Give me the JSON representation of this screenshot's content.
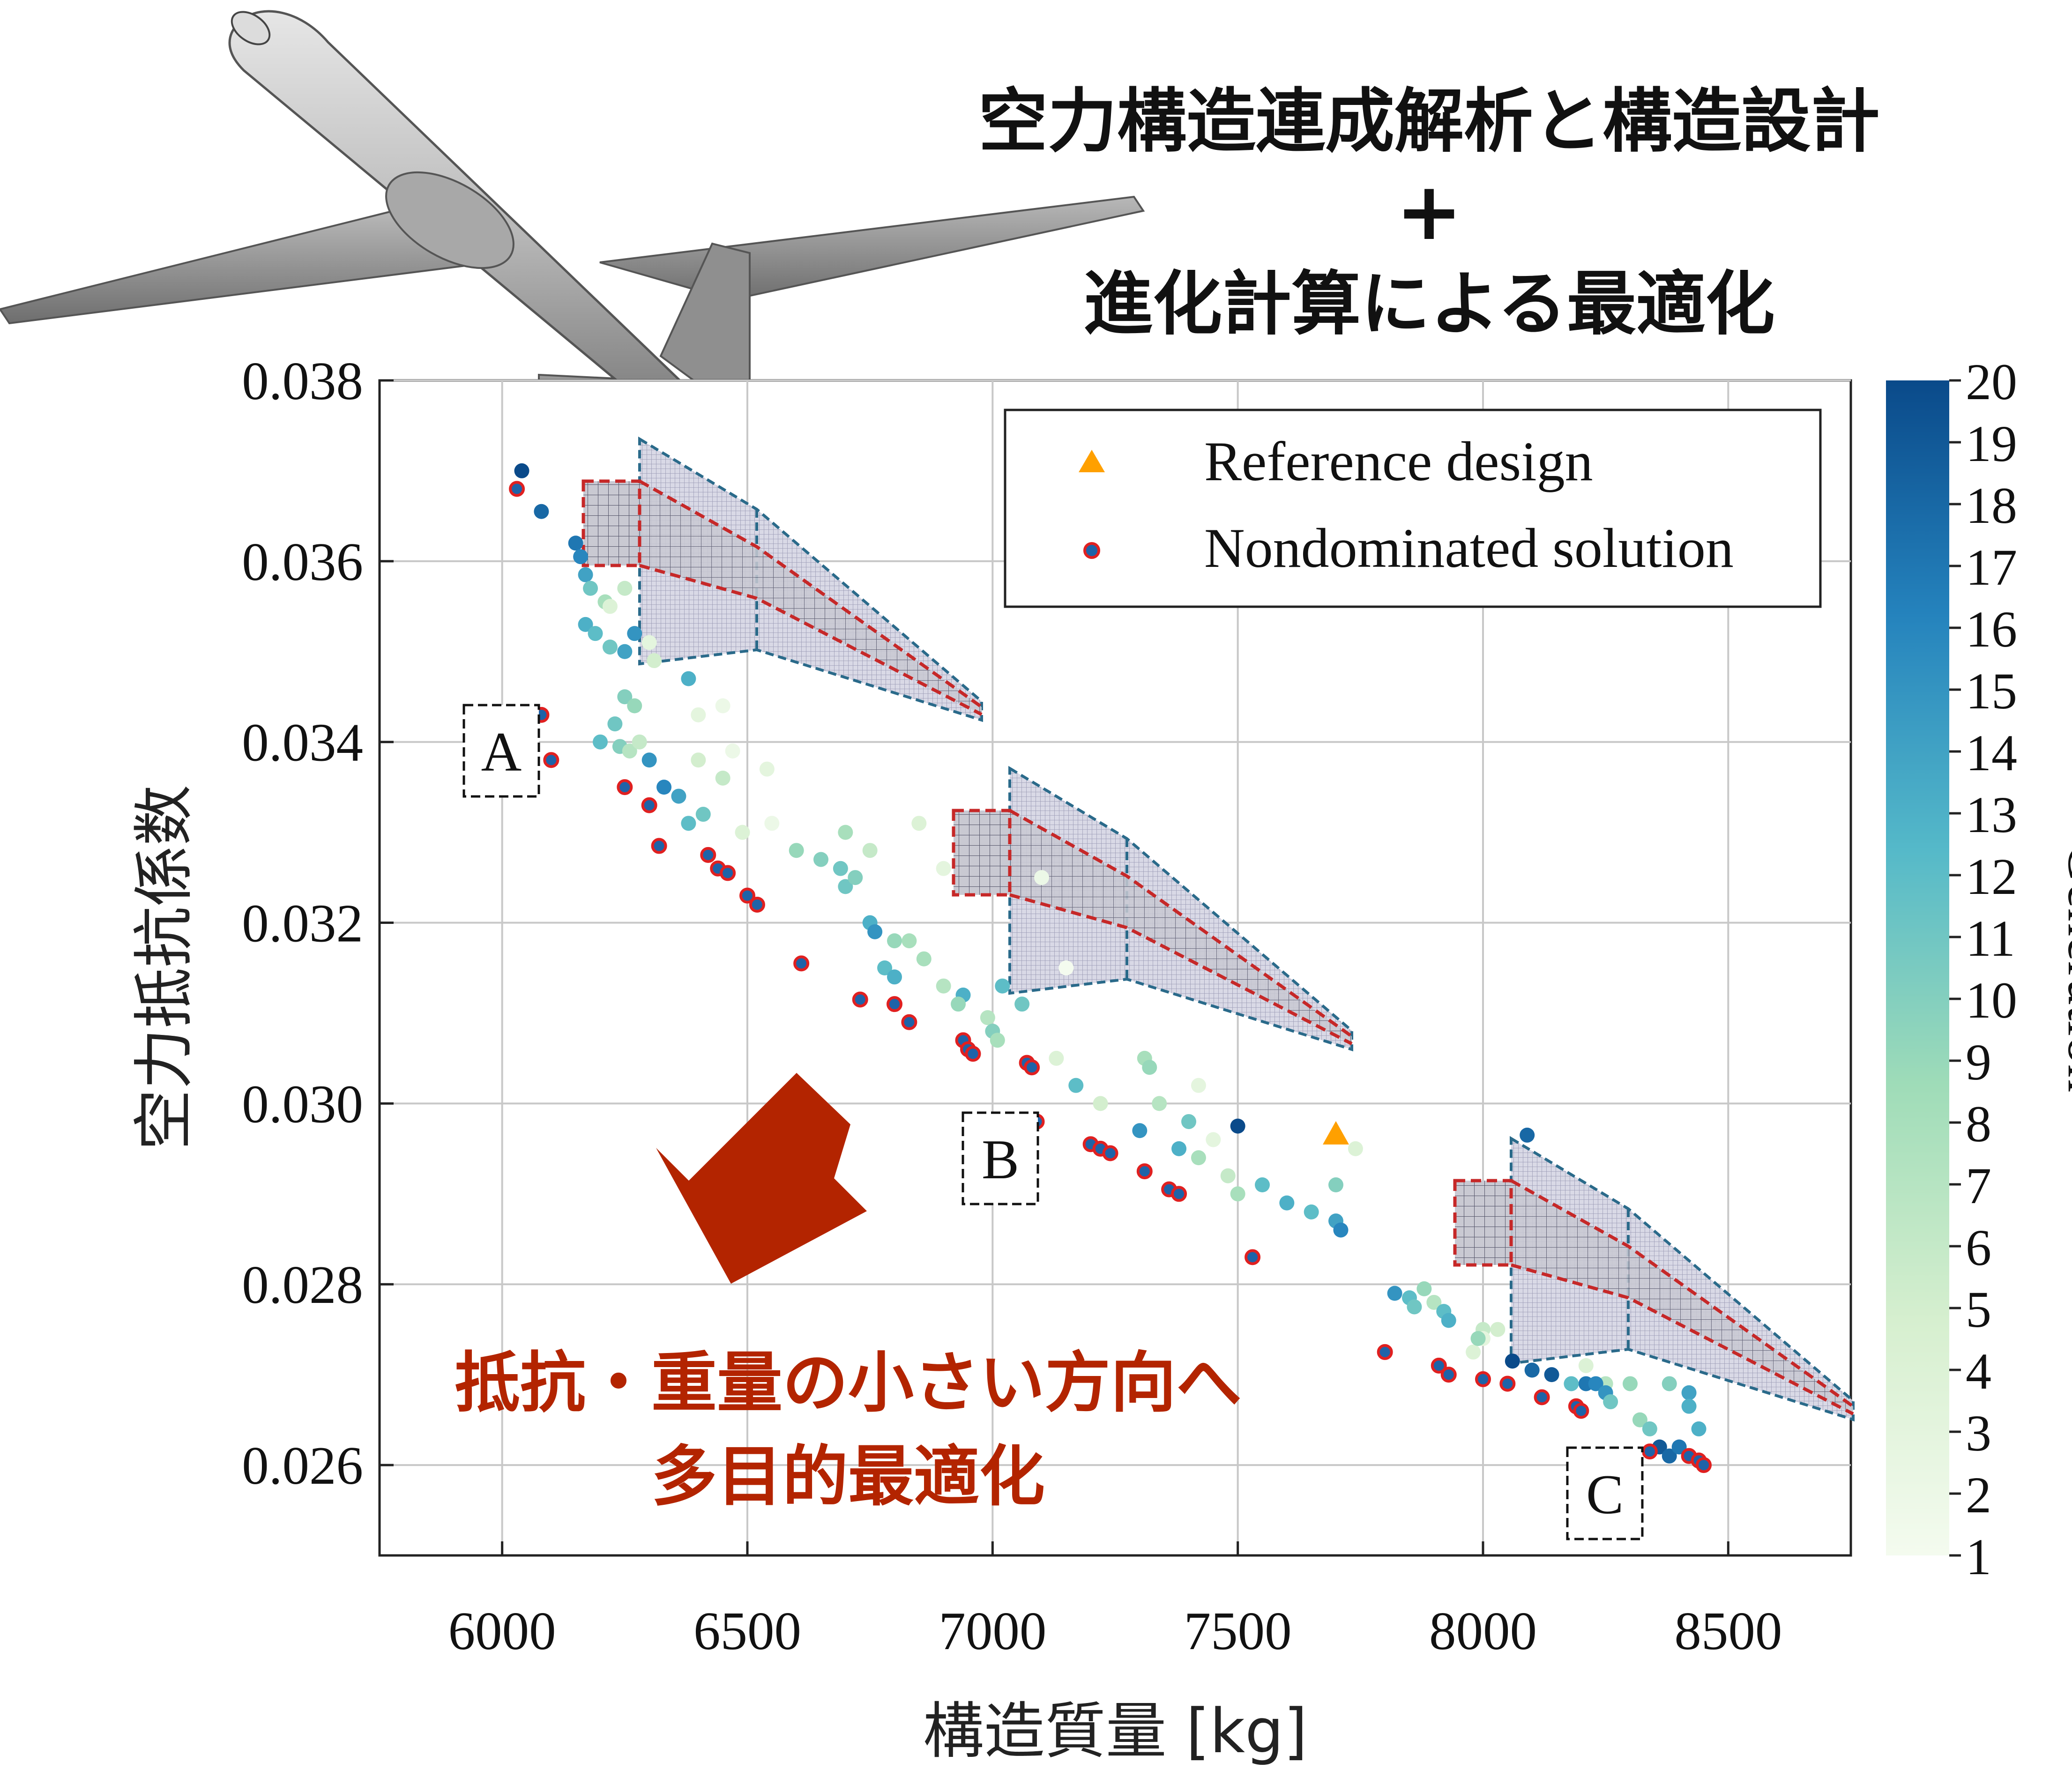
{
  "title": {
    "line1": "空力構造連成解析と構造設計",
    "line2": "+",
    "line3": "進化計算による最適化"
  },
  "annotation": {
    "line1": "抵抗・重量の小さい方向へ",
    "line2": "多目的最適化",
    "color": "#b32400"
  },
  "colors": {
    "reference": "#ffa000",
    "nondominated_fill": "#1e63a8",
    "nondominated_edge": "#e02020",
    "cmap_low": "#f4fbef",
    "cmap_mid": "#7fcfb6",
    "cmap_high": "#0a4a8a",
    "wing_outline": "#2a6a8a",
    "spar": "#c62828",
    "arrow": "#b32400"
  },
  "labels": {
    "a": "A",
    "b": "B",
    "c": "C"
  },
  "chart_data": {
    "type": "scatter",
    "xlabel": "構造質量 [kg]",
    "ylabel": "空力抵抗係数",
    "xlim": [
      5750,
      8750
    ],
    "ylim": [
      0.025,
      0.038
    ],
    "xticks": [
      "6000",
      "6500",
      "7000",
      "7500",
      "8000",
      "8500"
    ],
    "yticks": [
      "0.026",
      "0.028",
      "0.030",
      "0.032",
      "0.034",
      "0.036",
      "0.038"
    ],
    "grid": true,
    "legend": {
      "placement": "top-right",
      "entries": [
        "Reference design",
        "Nondominated solution"
      ]
    },
    "colorbar": {
      "label": "Generation",
      "min": 1,
      "max": 20,
      "ticks": [
        "1",
        "2",
        "3",
        "4",
        "5",
        "6",
        "7",
        "8",
        "9",
        "10",
        "11",
        "12",
        "13",
        "14",
        "15",
        "16",
        "17",
        "18",
        "19",
        "20"
      ]
    },
    "reference": {
      "x": 7700,
      "y": 0.02965
    },
    "nondominated": [
      [
        6030,
        0.0368
      ],
      [
        6080,
        0.0343
      ],
      [
        6100,
        0.0338
      ],
      [
        6250,
        0.0335
      ],
      [
        6300,
        0.0333
      ],
      [
        6320,
        0.03285
      ],
      [
        6420,
        0.03275
      ],
      [
        6440,
        0.0326
      ],
      [
        6460,
        0.03255
      ],
      [
        6500,
        0.0323
      ],
      [
        6520,
        0.0322
      ],
      [
        6610,
        0.03155
      ],
      [
        6730,
        0.03115
      ],
      [
        6800,
        0.0311
      ],
      [
        6830,
        0.0309
      ],
      [
        6940,
        0.0307
      ],
      [
        6950,
        0.0306
      ],
      [
        6960,
        0.03055
      ],
      [
        7070,
        0.03045
      ],
      [
        7080,
        0.0304
      ],
      [
        7090,
        0.0298
      ],
      [
        7200,
        0.02955
      ],
      [
        7220,
        0.0295
      ],
      [
        7240,
        0.02945
      ],
      [
        7310,
        0.02925
      ],
      [
        7360,
        0.02905
      ],
      [
        7380,
        0.029
      ],
      [
        7530,
        0.0283
      ],
      [
        7800,
        0.02725
      ],
      [
        7910,
        0.0271
      ],
      [
        7930,
        0.027
      ],
      [
        8000,
        0.02695
      ],
      [
        8050,
        0.0269
      ],
      [
        8120,
        0.02675
      ],
      [
        8190,
        0.02665
      ],
      [
        8200,
        0.0266
      ],
      [
        8340,
        0.02615
      ],
      [
        8420,
        0.0261
      ],
      [
        8440,
        0.02605
      ],
      [
        8450,
        0.026
      ]
    ],
    "population": [
      [
        6040,
        0.037,
        20
      ],
      [
        6080,
        0.03655,
        18
      ],
      [
        6150,
        0.0362,
        17
      ],
      [
        6160,
        0.03605,
        16
      ],
      [
        6170,
        0.03585,
        14
      ],
      [
        6180,
        0.0357,
        11
      ],
      [
        6210,
        0.03555,
        8
      ],
      [
        6220,
        0.0355,
        4
      ],
      [
        6250,
        0.0357,
        6
      ],
      [
        6170,
        0.0353,
        13
      ],
      [
        6190,
        0.0352,
        12
      ],
      [
        6220,
        0.03505,
        11
      ],
      [
        6250,
        0.035,
        14
      ],
      [
        6270,
        0.0352,
        15
      ],
      [
        6300,
        0.0351,
        3
      ],
      [
        6310,
        0.0349,
        5
      ],
      [
        6380,
        0.0347,
        13
      ],
      [
        6400,
        0.0343,
        3
      ],
      [
        6450,
        0.0344,
        2
      ],
      [
        6250,
        0.0345,
        10
      ],
      [
        6270,
        0.0344,
        9
      ],
      [
        6230,
        0.0342,
        11
      ],
      [
        6200,
        0.034,
        12
      ],
      [
        6240,
        0.03395,
        10
      ],
      [
        6260,
        0.0339,
        7
      ],
      [
        6300,
        0.0338,
        15
      ],
      [
        6280,
        0.034,
        6
      ],
      [
        6400,
        0.0338,
        5
      ],
      [
        6470,
        0.0339,
        2
      ],
      [
        6330,
        0.0335,
        16
      ],
      [
        6360,
        0.0334,
        14
      ],
      [
        6380,
        0.0331,
        12
      ],
      [
        6410,
        0.0332,
        11
      ],
      [
        6450,
        0.0336,
        6
      ],
      [
        6490,
        0.033,
        4
      ],
      [
        6540,
        0.0337,
        3
      ],
      [
        6550,
        0.0331,
        2
      ],
      [
        6600,
        0.0328,
        9
      ],
      [
        6650,
        0.0327,
        10
      ],
      [
        6700,
        0.0324,
        11
      ],
      [
        6750,
        0.032,
        13
      ],
      [
        6760,
        0.0319,
        15
      ],
      [
        6780,
        0.0315,
        12
      ],
      [
        6800,
        0.0314,
        13
      ],
      [
        6690,
        0.0326,
        11
      ],
      [
        6720,
        0.0325,
        10
      ],
      [
        6800,
        0.0318,
        9
      ],
      [
        6830,
        0.0318,
        8
      ],
      [
        6860,
        0.0316,
        8
      ],
      [
        6900,
        0.0313,
        7
      ],
      [
        6940,
        0.0312,
        13
      ],
      [
        6930,
        0.0311,
        9
      ],
      [
        6990,
        0.03095,
        7
      ],
      [
        7000,
        0.0308,
        10
      ],
      [
        7010,
        0.0307,
        8
      ],
      [
        7020,
        0.0313,
        12
      ],
      [
        7060,
        0.0311,
        11
      ],
      [
        6700,
        0.033,
        8
      ],
      [
        6750,
        0.0328,
        6
      ],
      [
        6850,
        0.0331,
        4
      ],
      [
        6900,
        0.0326,
        3
      ],
      [
        7100,
        0.0325,
        2
      ],
      [
        7150,
        0.0315,
        1
      ],
      [
        7130,
        0.0305,
        4
      ],
      [
        7170,
        0.0302,
        12
      ],
      [
        7220,
        0.03,
        5
      ],
      [
        7310,
        0.0305,
        8
      ],
      [
        7320,
        0.0304,
        9
      ],
      [
        7340,
        0.03,
        7
      ],
      [
        7420,
        0.0302,
        3
      ],
      [
        7400,
        0.0298,
        11
      ],
      [
        7300,
        0.0297,
        15
      ],
      [
        7380,
        0.0295,
        13
      ],
      [
        7420,
        0.0294,
        8
      ],
      [
        7450,
        0.0296,
        3
      ],
      [
        7480,
        0.0292,
        6
      ],
      [
        7500,
        0.029,
        8
      ],
      [
        7550,
        0.0291,
        12
      ],
      [
        7600,
        0.0289,
        13
      ],
      [
        7650,
        0.0288,
        12
      ],
      [
        7700,
        0.0287,
        14
      ],
      [
        7710,
        0.0286,
        16
      ],
      [
        7700,
        0.0291,
        10
      ],
      [
        7740,
        0.0295,
        4
      ],
      [
        7500,
        0.02975,
        20
      ],
      [
        7820,
        0.0279,
        15
      ],
      [
        7850,
        0.02785,
        12
      ],
      [
        7860,
        0.02775,
        11
      ],
      [
        7880,
        0.02795,
        9
      ],
      [
        7900,
        0.0278,
        7
      ],
      [
        7920,
        0.0277,
        12
      ],
      [
        7930,
        0.0276,
        13
      ],
      [
        8000,
        0.0275,
        6
      ],
      [
        8030,
        0.0275,
        5
      ],
      [
        8000,
        0.0274,
        3
      ],
      [
        7980,
        0.02725,
        4
      ],
      [
        8060,
        0.02715,
        20
      ],
      [
        8100,
        0.02705,
        18
      ],
      [
        8210,
        0.0271,
        4
      ],
      [
        8250,
        0.0269,
        7
      ],
      [
        8300,
        0.0269,
        9
      ],
      [
        8380,
        0.0269,
        10
      ],
      [
        8420,
        0.0268,
        14
      ],
      [
        8420,
        0.02665,
        13
      ],
      [
        8210,
        0.0269,
        17
      ],
      [
        8230,
        0.0269,
        16
      ],
      [
        8250,
        0.0268,
        15
      ],
      [
        8140,
        0.027,
        19
      ],
      [
        8180,
        0.0269,
        12
      ],
      [
        8260,
        0.0267,
        11
      ],
      [
        8320,
        0.0265,
        9
      ],
      [
        8340,
        0.0264,
        11
      ],
      [
        8360,
        0.0262,
        19
      ],
      [
        8380,
        0.0261,
        18
      ],
      [
        8400,
        0.0262,
        17
      ],
      [
        8440,
        0.0264,
        13
      ],
      [
        8090,
        0.02965,
        18
      ],
      [
        7990,
        0.0274,
        9
      ]
    ]
  }
}
